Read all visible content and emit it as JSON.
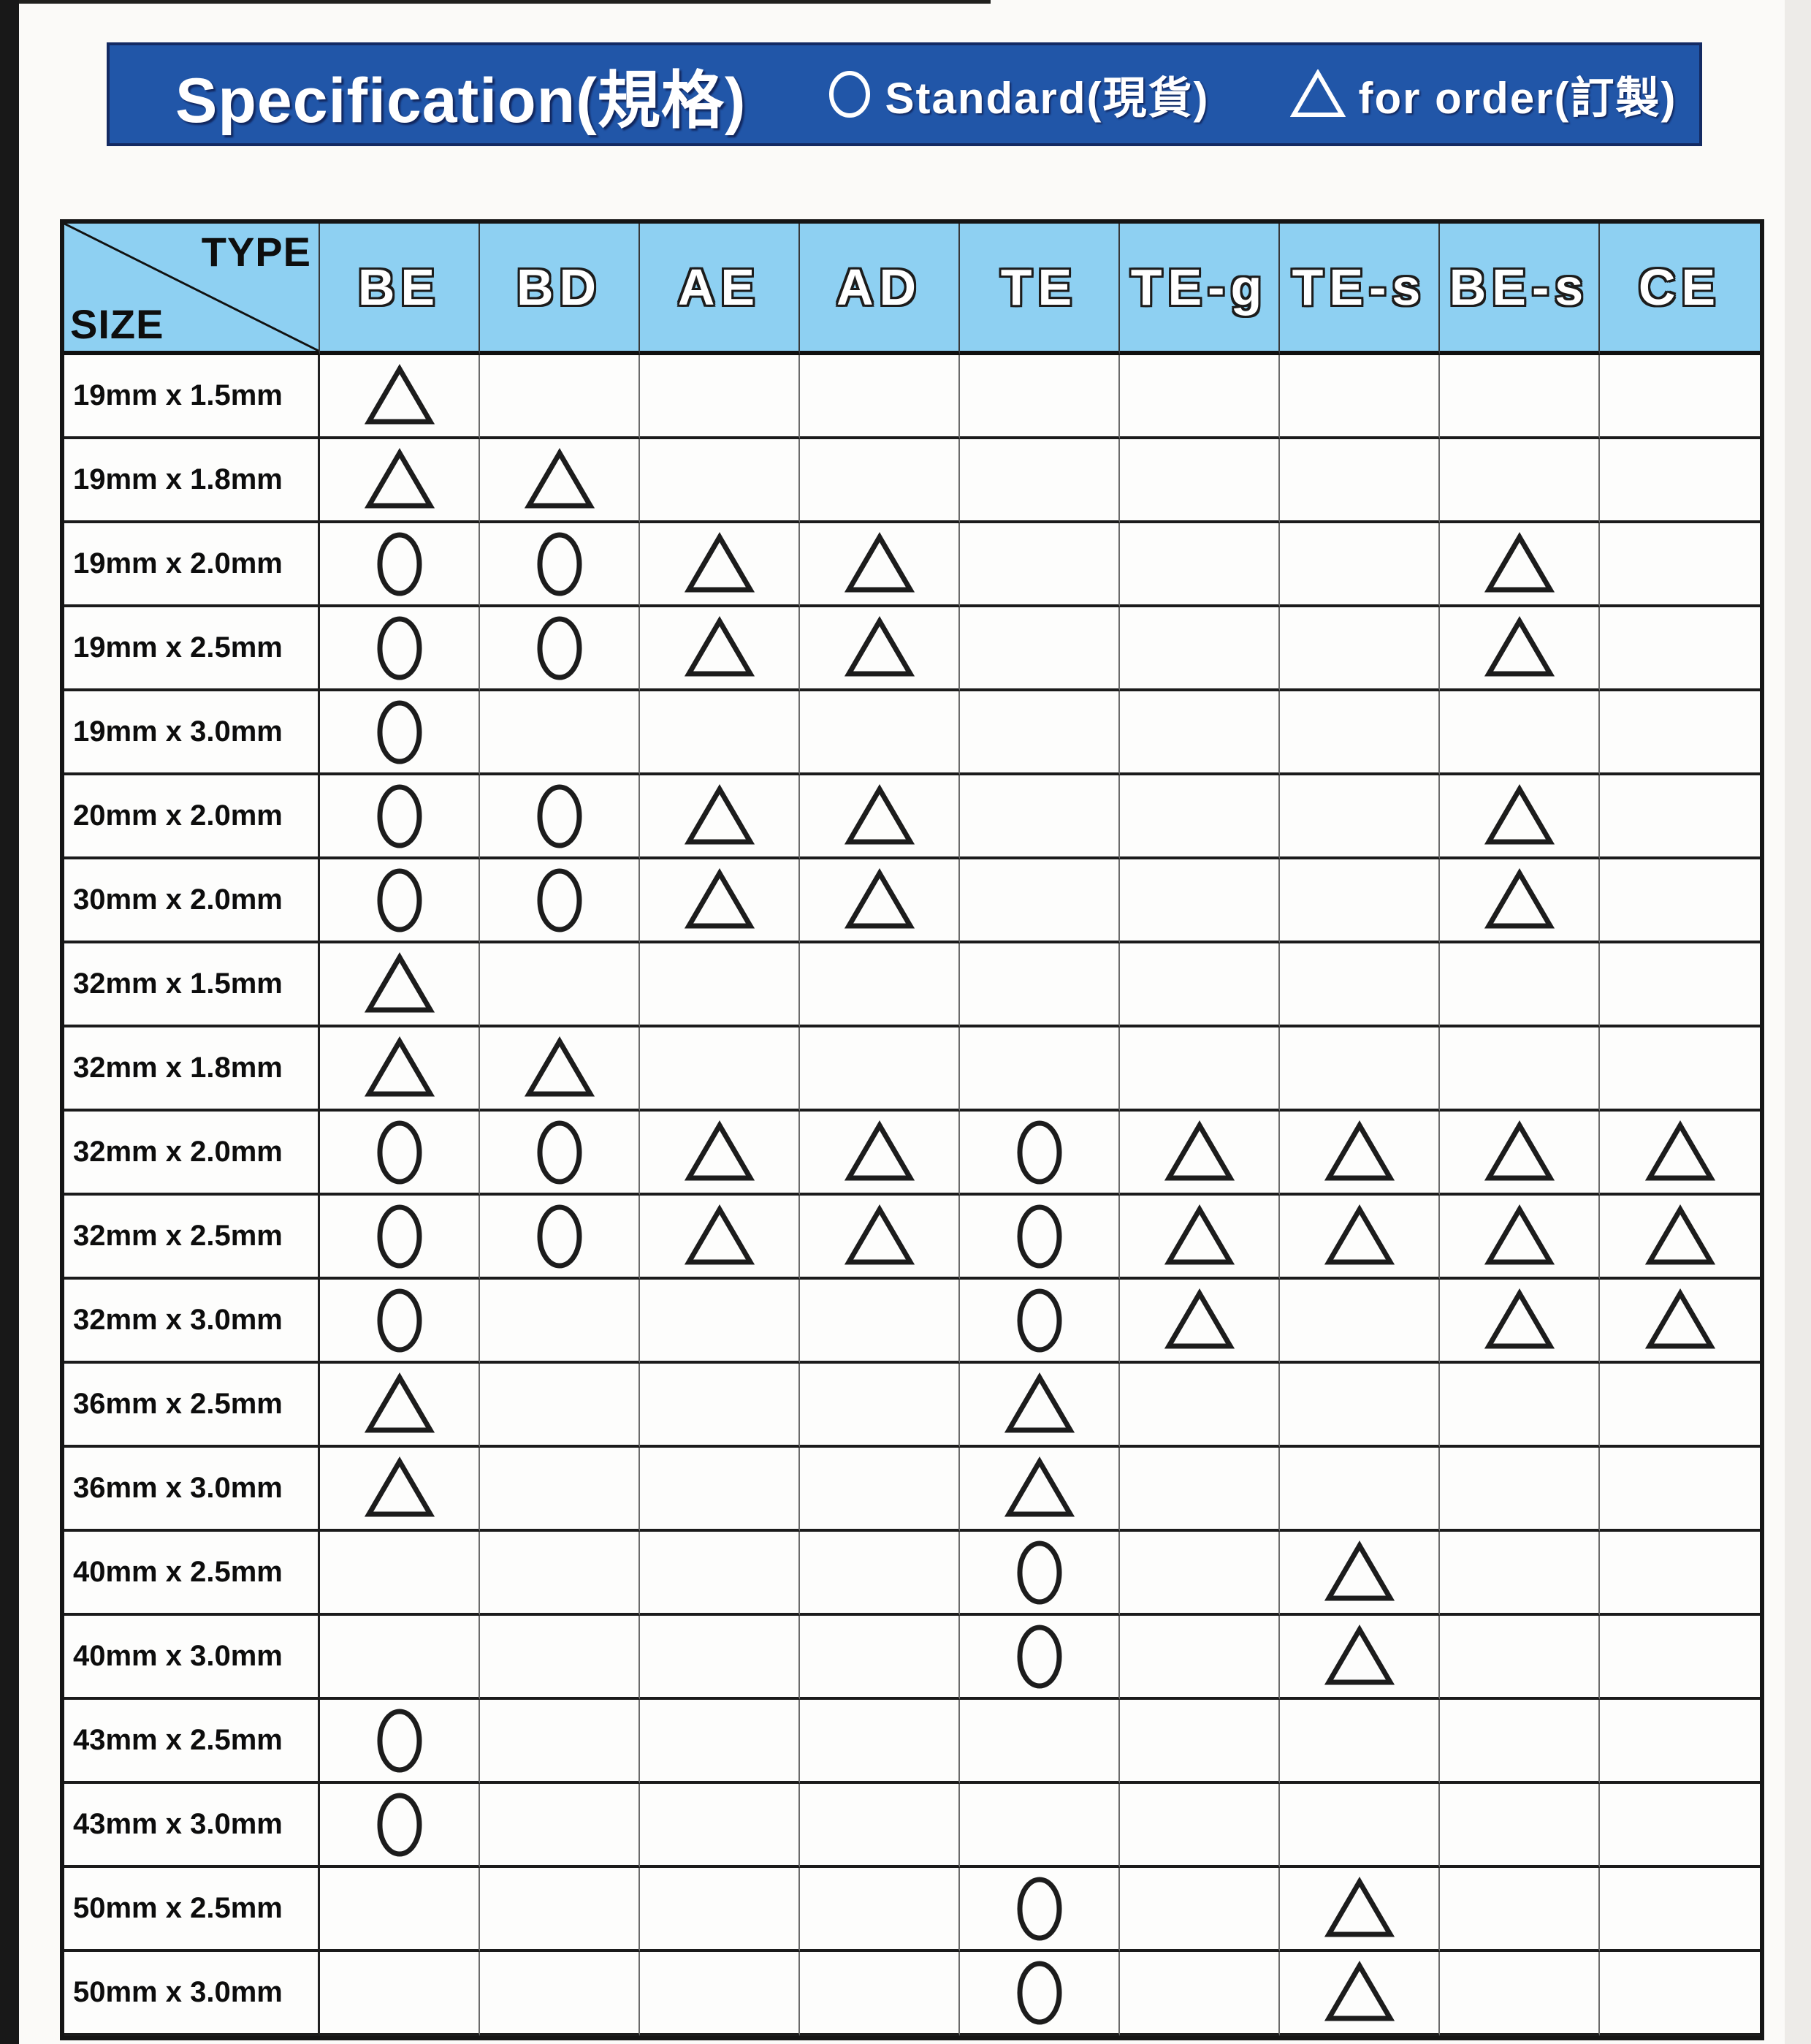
{
  "header": {
    "title": "Specification(規格)",
    "legend": [
      {
        "icon": "standard-circle-icon",
        "symbol": "circle",
        "label": "Standard(現貨)"
      },
      {
        "icon": "order-triangle-icon",
        "symbol": "triangle",
        "label": "for order(訂製)"
      }
    ]
  },
  "table": {
    "corner": {
      "type_label": "TYPE",
      "size_label": "SIZE"
    },
    "columns": [
      "BE",
      "BD",
      "AE",
      "AD",
      "TE",
      "TE-g",
      "TE-s",
      "BE-s",
      "CE"
    ],
    "symbol_meanings": {
      "circle": "Standard(現貨)",
      "triangle": "for order(訂製)"
    },
    "rows": [
      {
        "size": "19mm x 1.5mm",
        "cells": [
          "triangle",
          "",
          "",
          "",
          "",
          "",
          "",
          "",
          ""
        ]
      },
      {
        "size": "19mm x 1.8mm",
        "cells": [
          "triangle",
          "triangle",
          "",
          "",
          "",
          "",
          "",
          "",
          ""
        ]
      },
      {
        "size": "19mm x 2.0mm",
        "cells": [
          "circle",
          "circle",
          "triangle",
          "triangle",
          "",
          "",
          "",
          "triangle",
          ""
        ]
      },
      {
        "size": "19mm x 2.5mm",
        "cells": [
          "circle",
          "circle",
          "triangle",
          "triangle",
          "",
          "",
          "",
          "triangle",
          ""
        ]
      },
      {
        "size": "19mm x 3.0mm",
        "cells": [
          "circle",
          "",
          "",
          "",
          "",
          "",
          "",
          "",
          ""
        ]
      },
      {
        "size": "20mm x 2.0mm",
        "cells": [
          "circle",
          "circle",
          "triangle",
          "triangle",
          "",
          "",
          "",
          "triangle",
          ""
        ]
      },
      {
        "size": "30mm x 2.0mm",
        "cells": [
          "circle",
          "circle",
          "triangle",
          "triangle",
          "",
          "",
          "",
          "triangle",
          ""
        ]
      },
      {
        "size": "32mm x 1.5mm",
        "cells": [
          "triangle",
          "",
          "",
          "",
          "",
          "",
          "",
          "",
          ""
        ]
      },
      {
        "size": "32mm x 1.8mm",
        "cells": [
          "triangle",
          "triangle",
          "",
          "",
          "",
          "",
          "",
          "",
          ""
        ]
      },
      {
        "size": "32mm x 2.0mm",
        "cells": [
          "circle",
          "circle",
          "triangle",
          "triangle",
          "circle",
          "triangle",
          "triangle",
          "triangle",
          "triangle"
        ]
      },
      {
        "size": "32mm x 2.5mm",
        "cells": [
          "circle",
          "circle",
          "triangle",
          "triangle",
          "circle",
          "triangle",
          "triangle",
          "triangle",
          "triangle"
        ]
      },
      {
        "size": "32mm x 3.0mm",
        "cells": [
          "circle",
          "",
          "",
          "",
          "circle",
          "triangle",
          "",
          "triangle",
          "triangle"
        ]
      },
      {
        "size": "36mm x 2.5mm",
        "cells": [
          "triangle",
          "",
          "",
          "",
          "triangle",
          "",
          "",
          "",
          ""
        ]
      },
      {
        "size": "36mm x 3.0mm",
        "cells": [
          "triangle",
          "",
          "",
          "",
          "triangle",
          "",
          "",
          "",
          ""
        ]
      },
      {
        "size": "40mm x 2.5mm",
        "cells": [
          "",
          "",
          "",
          "",
          "circle",
          "",
          "triangle",
          "",
          ""
        ]
      },
      {
        "size": "40mm x 3.0mm",
        "cells": [
          "",
          "",
          "",
          "",
          "circle",
          "",
          "triangle",
          "",
          ""
        ]
      },
      {
        "size": "43mm x 2.5mm",
        "cells": [
          "circle",
          "",
          "",
          "",
          "",
          "",
          "",
          "",
          ""
        ]
      },
      {
        "size": "43mm x 3.0mm",
        "cells": [
          "circle",
          "",
          "",
          "",
          "",
          "",
          "",
          "",
          ""
        ]
      },
      {
        "size": "50mm x 2.5mm",
        "cells": [
          "",
          "",
          "",
          "",
          "circle",
          "",
          "triangle",
          "",
          ""
        ]
      },
      {
        "size": "50mm x 3.0mm",
        "cells": [
          "",
          "",
          "",
          "",
          "circle",
          "",
          "triangle",
          "",
          ""
        ]
      }
    ]
  },
  "colors": {
    "title_bar_bg": "#2156a8",
    "title_bar_border": "#132a63",
    "header_row_bg": "#8ed0f2",
    "grid_line": "#1b1b1b",
    "symbol_stroke": "#1c1c1c",
    "page_bg": "#fbfaf8"
  }
}
